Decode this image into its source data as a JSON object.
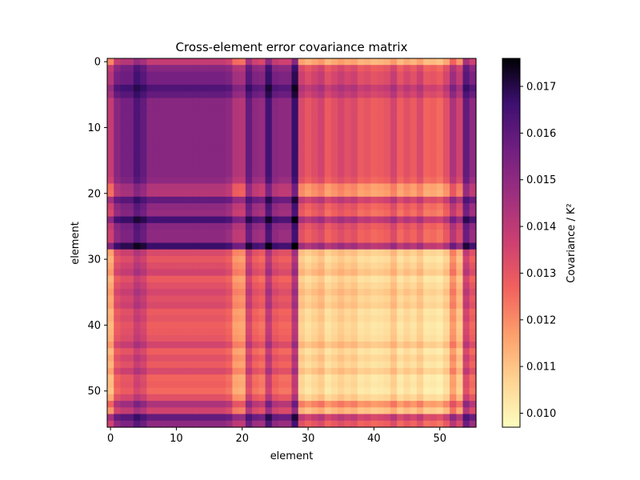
{
  "chart_data": {
    "type": "heatmap",
    "title": "Cross-element error covariance matrix",
    "xlabel": "element",
    "ylabel": "element",
    "colorbar_label": "Covariance / K²",
    "colormap": "magma_r",
    "n": 56,
    "xlim": [
      -0.5,
      55.5
    ],
    "ylim": [
      55.5,
      -0.5
    ],
    "xticks": [
      0,
      10,
      20,
      30,
      40,
      50
    ],
    "yticks": [
      0,
      10,
      20,
      30,
      40,
      50
    ],
    "vmin": 0.0097,
    "vmax": 0.0176,
    "colorbar_ticks": [
      0.01,
      0.011,
      0.012,
      0.013,
      0.014,
      0.015,
      0.016,
      0.017
    ],
    "colorbar_tick_labels": [
      "0.010",
      "0.011",
      "0.012",
      "0.013",
      "0.014",
      "0.015",
      "0.016",
      "0.017"
    ],
    "element_factors": [
      0.32,
      0.58,
      0.62,
      0.62,
      0.7,
      0.66,
      0.58,
      0.58,
      0.58,
      0.58,
      0.58,
      0.58,
      0.58,
      0.58,
      0.58,
      0.58,
      0.58,
      0.58,
      0.55,
      0.4,
      0.38,
      0.66,
      0.55,
      0.52,
      0.72,
      0.58,
      0.55,
      0.55,
      0.74,
      0.22,
      0.14,
      0.2,
      0.26,
      0.12,
      0.18,
      0.24,
      0.18,
      0.22,
      0.12,
      0.15,
      0.1,
      0.12,
      0.15,
      0.25,
      0.1,
      0.18,
      0.12,
      0.22,
      0.08,
      0.1,
      0.06,
      0.18,
      0.42,
      0.26,
      0.66,
      0.55
    ]
  }
}
